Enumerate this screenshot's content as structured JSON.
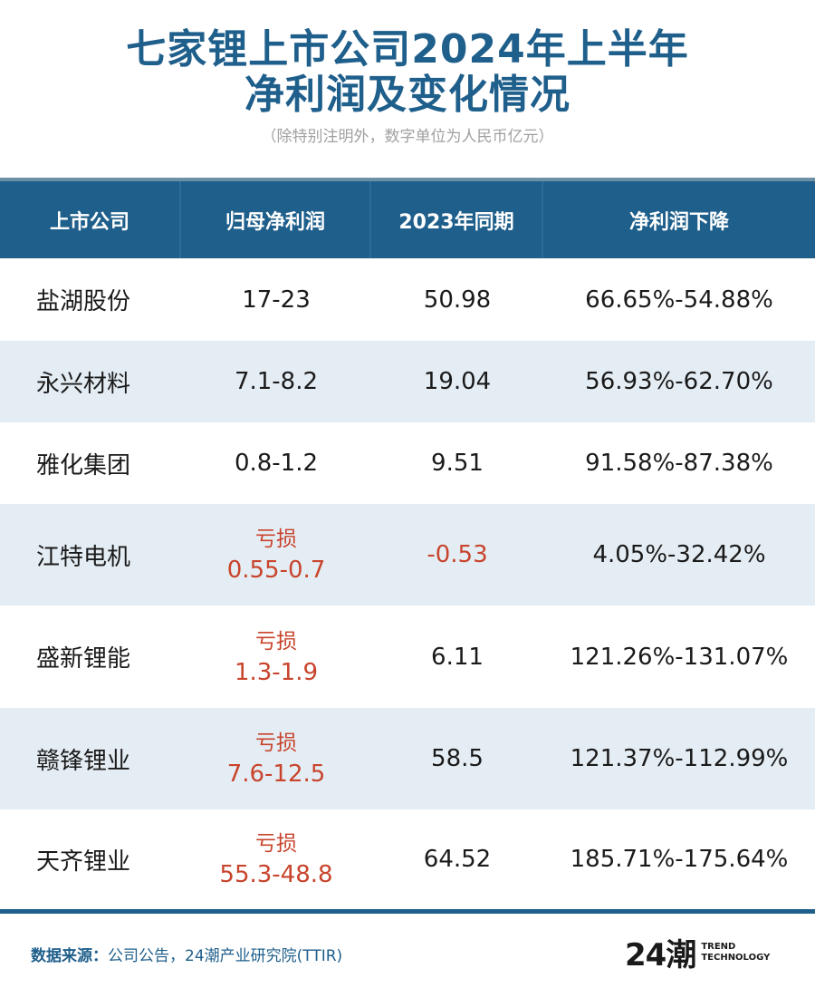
{
  "header": {
    "title_line1": "七家锂上市公司2024年上半年",
    "title_line2": "净利润及变化情况",
    "subtitle": "（除特别注明外，数字单位为人民币亿元）"
  },
  "table": {
    "columns": [
      "上市公司",
      "归母净利润",
      "2023年同期",
      "净利润下降"
    ],
    "rows": [
      {
        "company": "盐湖股份",
        "profit_tag": "",
        "profit": "17-23",
        "prev": "50.98",
        "decline": "66.65%-54.88%"
      },
      {
        "company": "永兴材料",
        "profit_tag": "",
        "profit": "7.1-8.2",
        "prev": "19.04",
        "decline": "56.93%-62.70%"
      },
      {
        "company": "雅化集团",
        "profit_tag": "",
        "profit": "0.8-1.2",
        "prev": "9.51",
        "decline": "91.58%-87.38%"
      },
      {
        "company": "江特电机",
        "profit_tag": "亏损",
        "profit": "0.55-0.7",
        "prev": "-0.53",
        "decline": "4.05%-32.42%"
      },
      {
        "company": "盛新锂能",
        "profit_tag": "亏损",
        "profit": "1.3-1.9",
        "prev": "6.11",
        "decline": "121.26%-131.07%"
      },
      {
        "company": "赣锋锂业",
        "profit_tag": "亏损",
        "profit": "7.6-12.5",
        "prev": "58.5",
        "decline": "121.37%-112.99%"
      },
      {
        "company": "天齐锂业",
        "profit_tag": "亏损",
        "profit": "55.3-48.8",
        "prev": "64.52",
        "decline": "185.71%-175.64%"
      }
    ]
  },
  "footer": {
    "source_label": "数据来源：",
    "source_text": "公司公告，24潮产业研究院(TTIR)",
    "logo_mark": "24潮",
    "logo_line1": "TREND",
    "logo_line2": "TECHNOLOGY"
  },
  "colors": {
    "accent": "#1f5f8b",
    "row_alt": "#e5edf4",
    "loss": "#c8442c"
  }
}
